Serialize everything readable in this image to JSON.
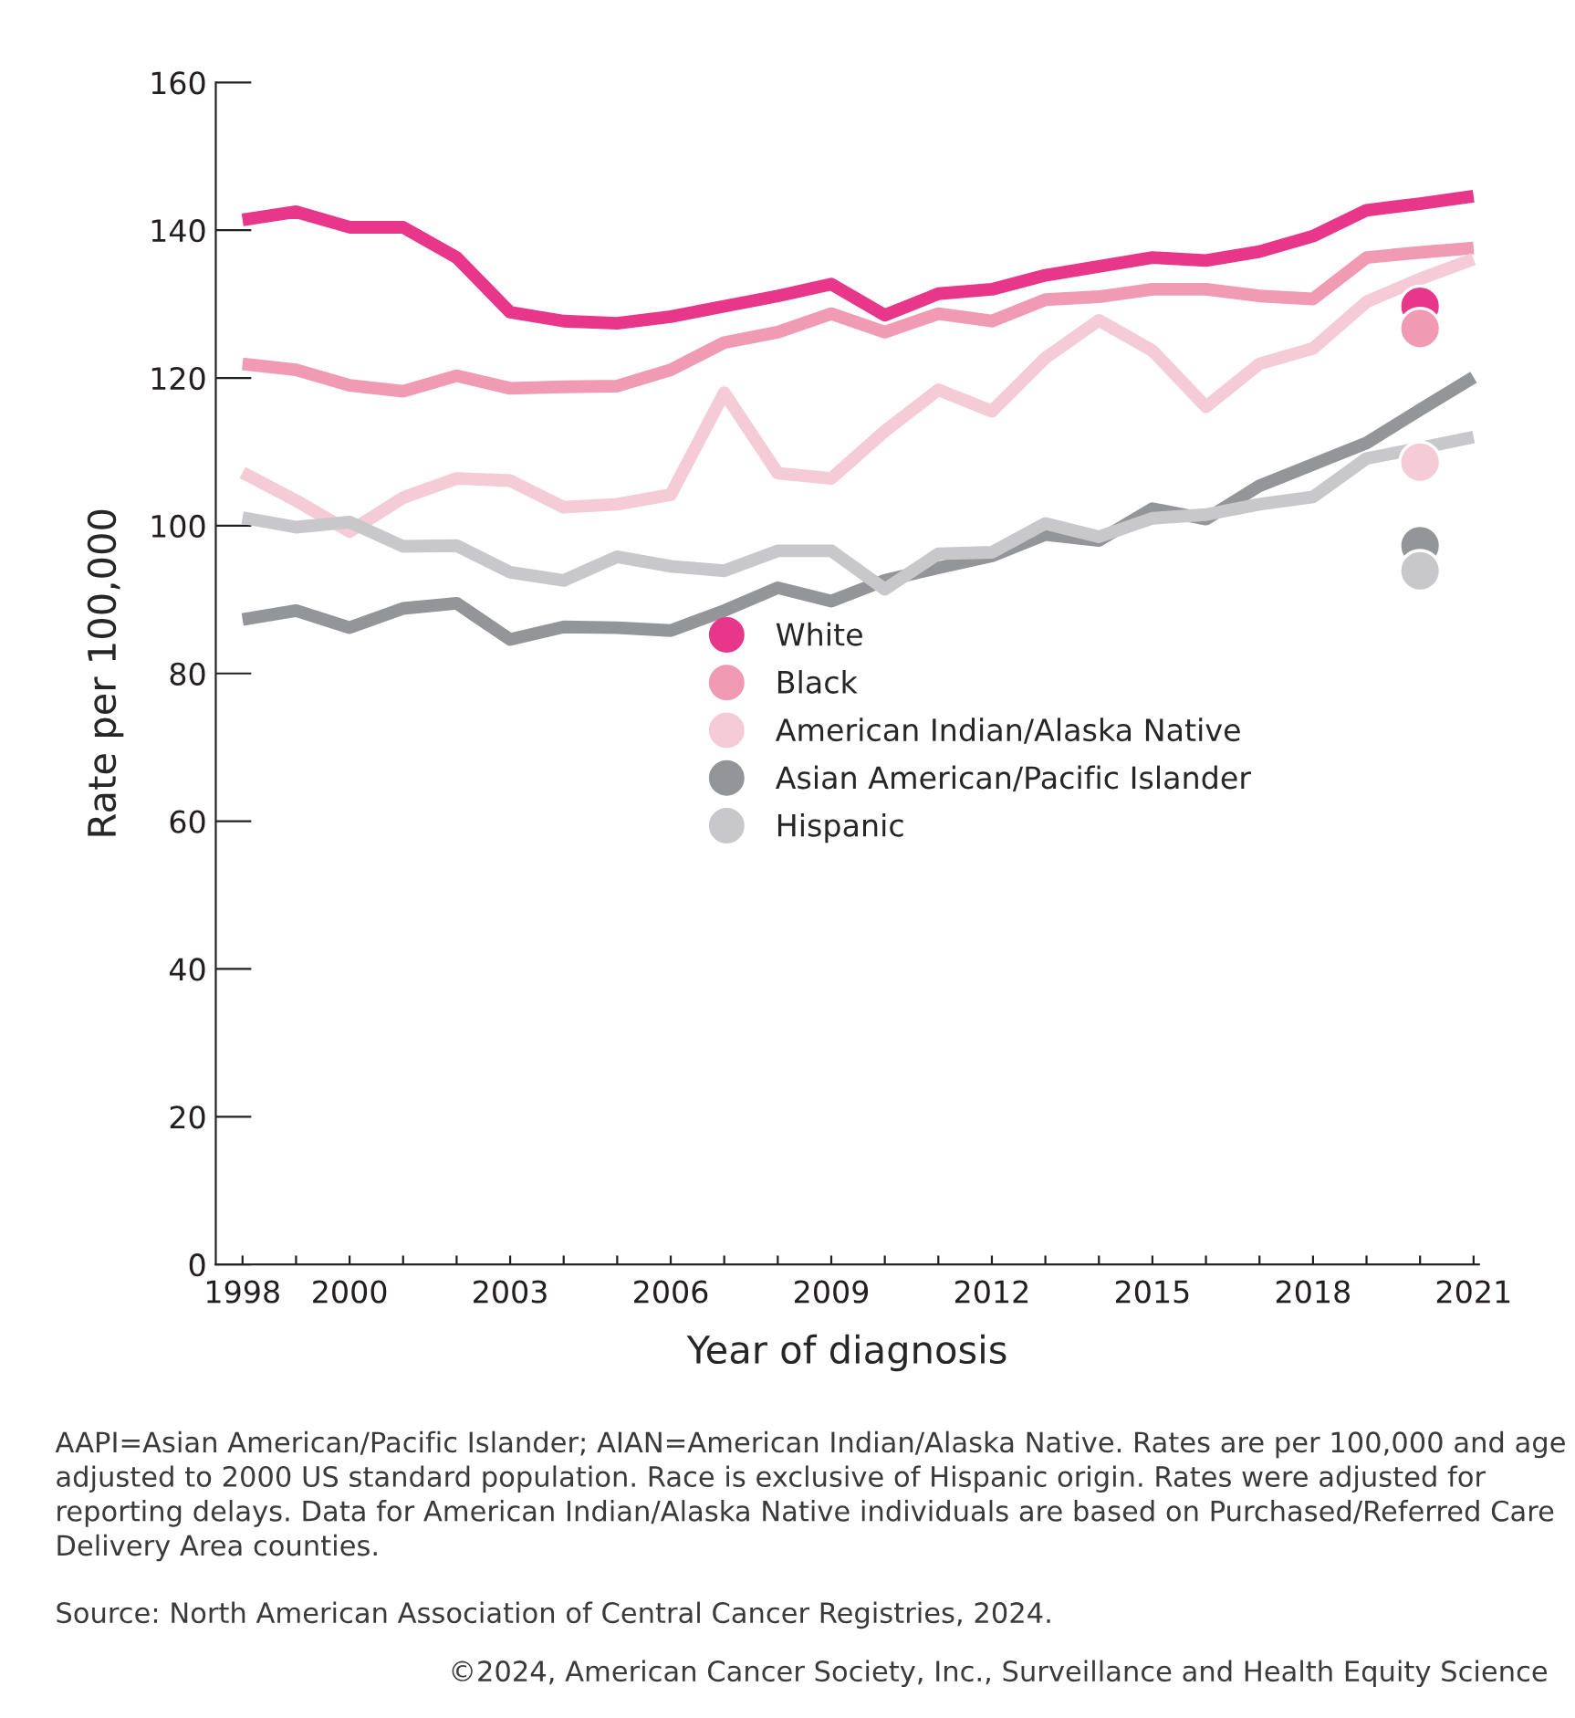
{
  "chart_data": {
    "type": "line",
    "xlabel": "Year of diagnosis",
    "ylabel": "Rate per 100,000",
    "x": [
      1998,
      1999,
      2000,
      2001,
      2002,
      2003,
      2004,
      2005,
      2006,
      2007,
      2008,
      2009,
      2010,
      2011,
      2012,
      2013,
      2014,
      2015,
      2016,
      2017,
      2018,
      2019,
      2020,
      2021
    ],
    "series": [
      {
        "name": "White",
        "color": "#e8378a",
        "values": [
          141.4,
          142.5,
          140.4,
          140.4,
          136.3,
          128.9,
          127.7,
          127.4,
          128.3,
          129.7,
          131.1,
          132.7,
          128.5,
          131.4,
          132.0,
          133.9,
          135.1,
          136.3,
          135.9,
          137.1,
          139.2,
          142.7,
          143.6,
          144.6
        ]
      },
      {
        "name": "Black",
        "color": "#f09ab3",
        "values": [
          121.9,
          121.1,
          119.0,
          118.2,
          120.3,
          118.6,
          118.8,
          118.9,
          121.1,
          124.8,
          126.2,
          128.7,
          126.2,
          128.7,
          127.7,
          130.6,
          131.0,
          132.0,
          132.0,
          131.1,
          130.7,
          136.3,
          137.0,
          137.6
        ]
      },
      {
        "name": "American Indian/Alaska Native",
        "color": "#f5cbd8",
        "values": [
          107.2,
          103.4,
          99.2,
          103.8,
          106.4,
          106.1,
          102.5,
          102.9,
          104.2,
          118.0,
          107.1,
          106.4,
          112.8,
          118.4,
          115.5,
          122.7,
          127.8,
          123.7,
          116.1,
          121.9,
          124.0,
          130.3,
          133.4,
          136.1
        ]
      },
      {
        "name": "Asian American/Pacific Islander",
        "color": "#939598",
        "values": [
          87.3,
          88.5,
          86.2,
          88.8,
          89.5,
          84.6,
          86.3,
          86.2,
          85.8,
          88.5,
          91.6,
          89.8,
          92.6,
          94.3,
          95.9,
          98.8,
          98.0,
          102.3,
          100.9,
          105.4,
          108.3,
          111.2,
          115.7,
          120.1
        ]
      },
      {
        "name": "Hispanic",
        "color": "#c8c8ca",
        "values": [
          101.1,
          99.8,
          100.5,
          97.2,
          97.3,
          93.7,
          92.6,
          95.8,
          94.5,
          93.9,
          96.6,
          96.6,
          91.4,
          96.2,
          96.4,
          100.3,
          98.5,
          101.0,
          101.5,
          102.9,
          103.9,
          109.1,
          110.5,
          112.0
        ]
      },
      {
        "type": "scatter",
        "marker": "circle",
        "color": "#e8378a",
        "values": [
          null,
          null,
          null,
          null,
          null,
          null,
          null,
          null,
          null,
          null,
          null,
          null,
          null,
          null,
          null,
          null,
          null,
          null,
          null,
          null,
          null,
          null,
          129.7,
          null
        ]
      },
      {
        "type": "scatter",
        "marker": "circle",
        "color": "#f09ab3",
        "values": [
          null,
          null,
          null,
          null,
          null,
          null,
          null,
          null,
          null,
          null,
          null,
          null,
          null,
          null,
          null,
          null,
          null,
          null,
          null,
          null,
          null,
          null,
          126.7,
          null
        ]
      },
      {
        "type": "scatter",
        "marker": "circle",
        "color": "#f5cbd8",
        "values": [
          null,
          null,
          null,
          null,
          null,
          null,
          null,
          null,
          null,
          null,
          null,
          null,
          null,
          null,
          null,
          null,
          null,
          null,
          null,
          null,
          null,
          null,
          108.6,
          null
        ]
      },
      {
        "type": "scatter",
        "marker": "circle",
        "color": "#939598",
        "values": [
          null,
          null,
          null,
          null,
          null,
          null,
          null,
          null,
          null,
          null,
          null,
          null,
          null,
          null,
          null,
          null,
          null,
          null,
          null,
          null,
          null,
          null,
          97.3,
          null
        ]
      },
      {
        "type": "scatter",
        "marker": "circle",
        "color": "#c8c8ca",
        "values": [
          null,
          null,
          null,
          null,
          null,
          null,
          null,
          null,
          null,
          null,
          null,
          null,
          null,
          null,
          null,
          null,
          null,
          null,
          null,
          null,
          null,
          null,
          93.9,
          null
        ]
      }
    ],
    "xlim": [
      1997.5,
      2021.1
    ],
    "ylim": [
      0,
      160
    ],
    "xticks": [
      1998,
      {
        "value": 1999,
        "label": null
      },
      2000,
      {
        "value": 2001,
        "label": null
      },
      {
        "value": 2002,
        "label": null
      },
      2003,
      {
        "value": 2004,
        "label": null
      },
      {
        "value": 2005,
        "label": null
      },
      2006,
      {
        "value": 2007,
        "label": null
      },
      {
        "value": 2008,
        "label": null
      },
      2009,
      {
        "value": 2010,
        "label": null
      },
      {
        "value": 2011,
        "label": null
      },
      2012,
      {
        "value": 2013,
        "label": null
      },
      {
        "value": 2014,
        "label": null
      },
      2015,
      {
        "value": 2016,
        "label": null
      },
      {
        "value": 2017,
        "label": null
      },
      2018,
      {
        "value": 2019,
        "label": null
      },
      {
        "value": 2020,
        "label": null
      },
      2021
    ],
    "yticks": [
      0,
      20,
      40,
      60,
      80,
      100,
      120,
      140,
      160
    ],
    "grid": false,
    "legend": "center",
    "line_style": "solid",
    "annotations": [
      "AAPI=Asian American/Pacific Islander; AIAN=American Indian/Alaska Native. Rates are per 100,000 and age adjusted to 2000 US standard population. Race is exclusive of Hispanic origin. Rates were adjusted for reporting delays. Data for American Indian/Alaska Native individuals are based on Purchased/Referred Care Delivery Area counties.",
      "Source: North American Association of Central Cancer Registries, 2024.",
      "©2024, American Cancer Society, Inc., Surveillance and Health Equity Science"
    ]
  }
}
